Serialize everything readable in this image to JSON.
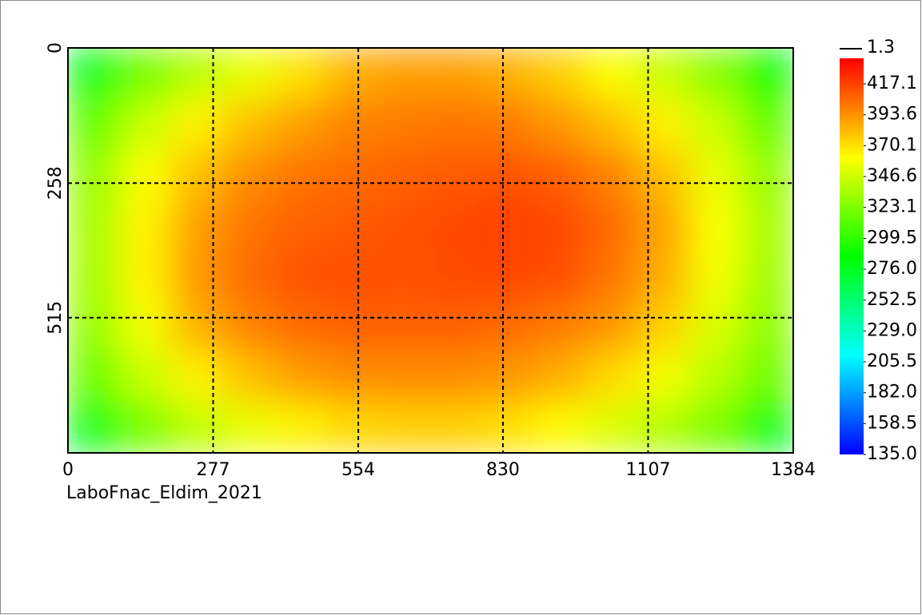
{
  "chart_data": {
    "type": "heatmap",
    "caption": "LaboFnac_Eldim_2021",
    "xlim": [
      0,
      1384
    ],
    "xticks": [
      0,
      277,
      554,
      830,
      1107,
      1384
    ],
    "ylim": [
      0,
      773
    ],
    "yticks": [
      0,
      258,
      515
    ],
    "grid": true,
    "colorscale": [
      "#0000ff",
      "#00ffff",
      "#00ff00",
      "#ffff00",
      "#ff0000"
    ],
    "color_range": [
      135,
      436.6
    ],
    "colorbar_marker": 1.3,
    "colorbar_ticks": [
      417.1,
      393.6,
      370.1,
      346.6,
      323.1,
      299.5,
      {
        "value": 276,
        "label": "276.0"
      },
      252.5,
      {
        "value": 229,
        "label": "229.0"
      },
      205.5,
      {
        "value": 182,
        "label": "182.0"
      },
      158.5,
      {
        "value": 135,
        "label": "135.0"
      }
    ],
    "z": [
      [
        280,
        320,
        340,
        355,
        370,
        385,
        390,
        390,
        385,
        375,
        360,
        345,
        325,
        285
      ],
      [
        315,
        345,
        365,
        380,
        390,
        398,
        400,
        402,
        400,
        392,
        380,
        365,
        345,
        315
      ],
      [
        330,
        360,
        380,
        395,
        402,
        405,
        408,
        410,
        412,
        408,
        398,
        380,
        355,
        330
      ],
      [
        335,
        365,
        390,
        402,
        408,
        410,
        412,
        415,
        418,
        415,
        405,
        388,
        360,
        335
      ],
      [
        335,
        365,
        392,
        405,
        412,
        413,
        412,
        414,
        416,
        413,
        402,
        385,
        358,
        333
      ],
      [
        330,
        358,
        385,
        398,
        405,
        408,
        408,
        408,
        405,
        400,
        392,
        375,
        350,
        328
      ],
      [
        318,
        345,
        365,
        380,
        390,
        395,
        395,
        395,
        392,
        385,
        372,
        358,
        340,
        318
      ],
      [
        280,
        322,
        342,
        355,
        365,
        372,
        375,
        375,
        370,
        362,
        350,
        338,
        322,
        282
      ]
    ]
  }
}
